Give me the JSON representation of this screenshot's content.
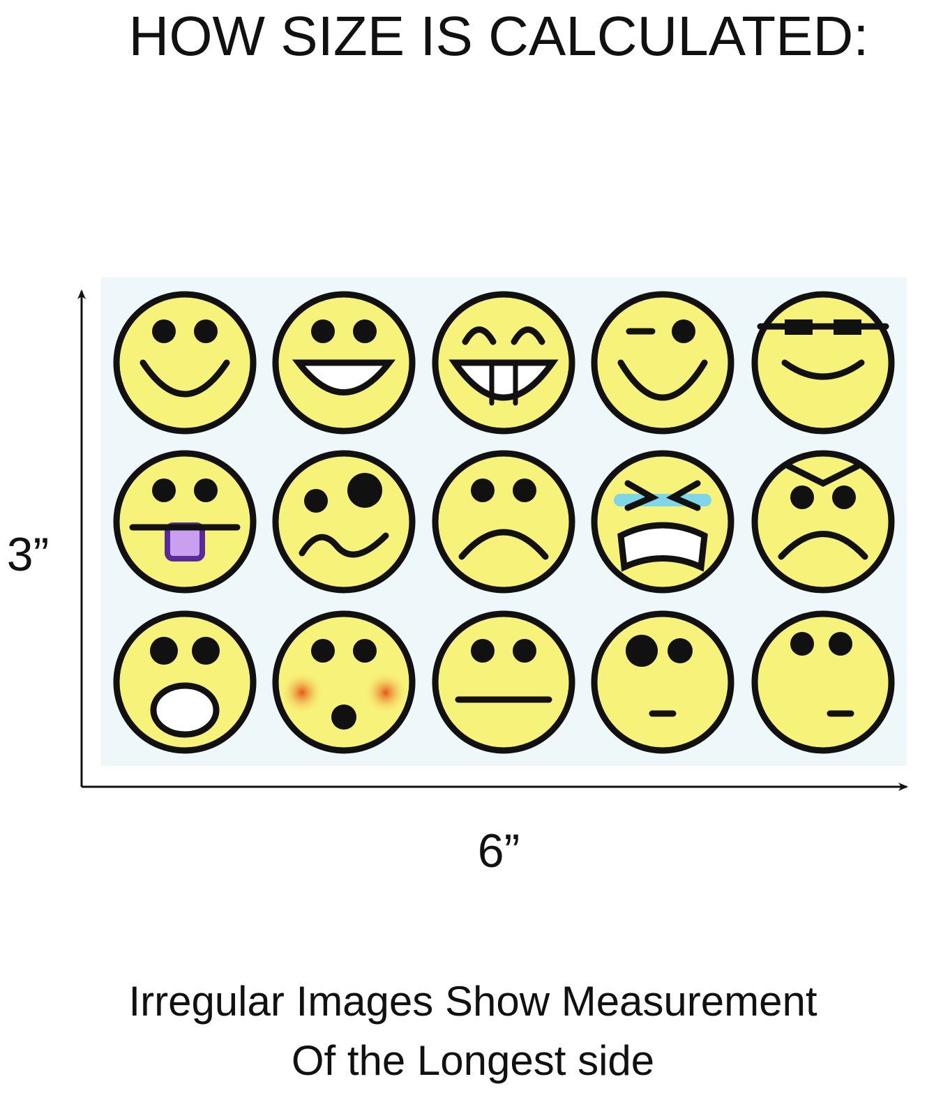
{
  "header": {
    "title": "HOW SIZE IS CALCULATED:"
  },
  "dimensions": {
    "height_label": "3”",
    "width_label": "6”"
  },
  "caption": {
    "line1": "Irregular Images Show Measurement",
    "line2": "Of the Longest side"
  }
}
